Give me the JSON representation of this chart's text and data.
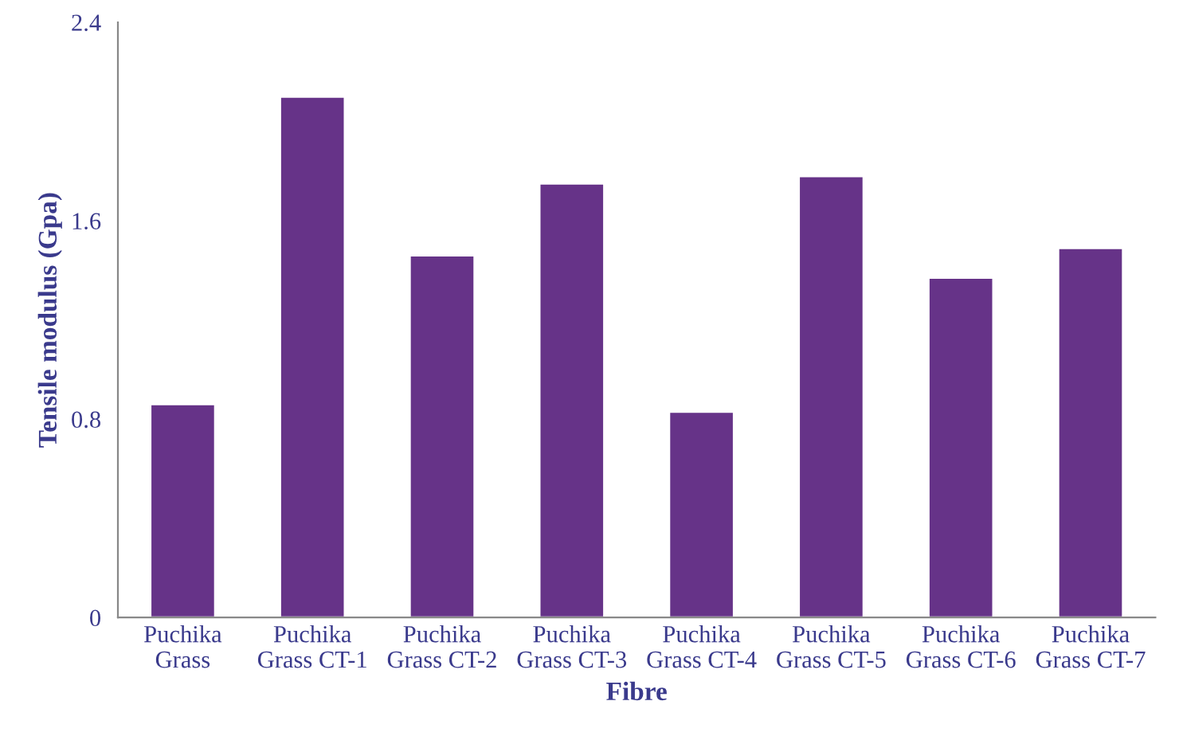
{
  "chart_data": {
    "type": "bar",
    "xlabel": "Fibre",
    "ylabel": "Tensile modulus (Gpa)",
    "categories": [
      "Puchika Grass",
      "Puchika Grass CT-1",
      "Puchika Grass CT-2",
      "Puchika Grass CT-3",
      "Puchika Grass CT-4",
      "Puchika Grass CT-5",
      "Puchika Grass CT-6",
      "Puchika Grass CT-7"
    ],
    "values": [
      0.86,
      2.1,
      1.46,
      1.75,
      0.83,
      1.78,
      1.37,
      1.49
    ],
    "color": "#663388",
    "ylim": [
      0,
      2.4
    ],
    "yticks": [
      0,
      0.8,
      1.6,
      2.4
    ],
    "grid": false
  }
}
